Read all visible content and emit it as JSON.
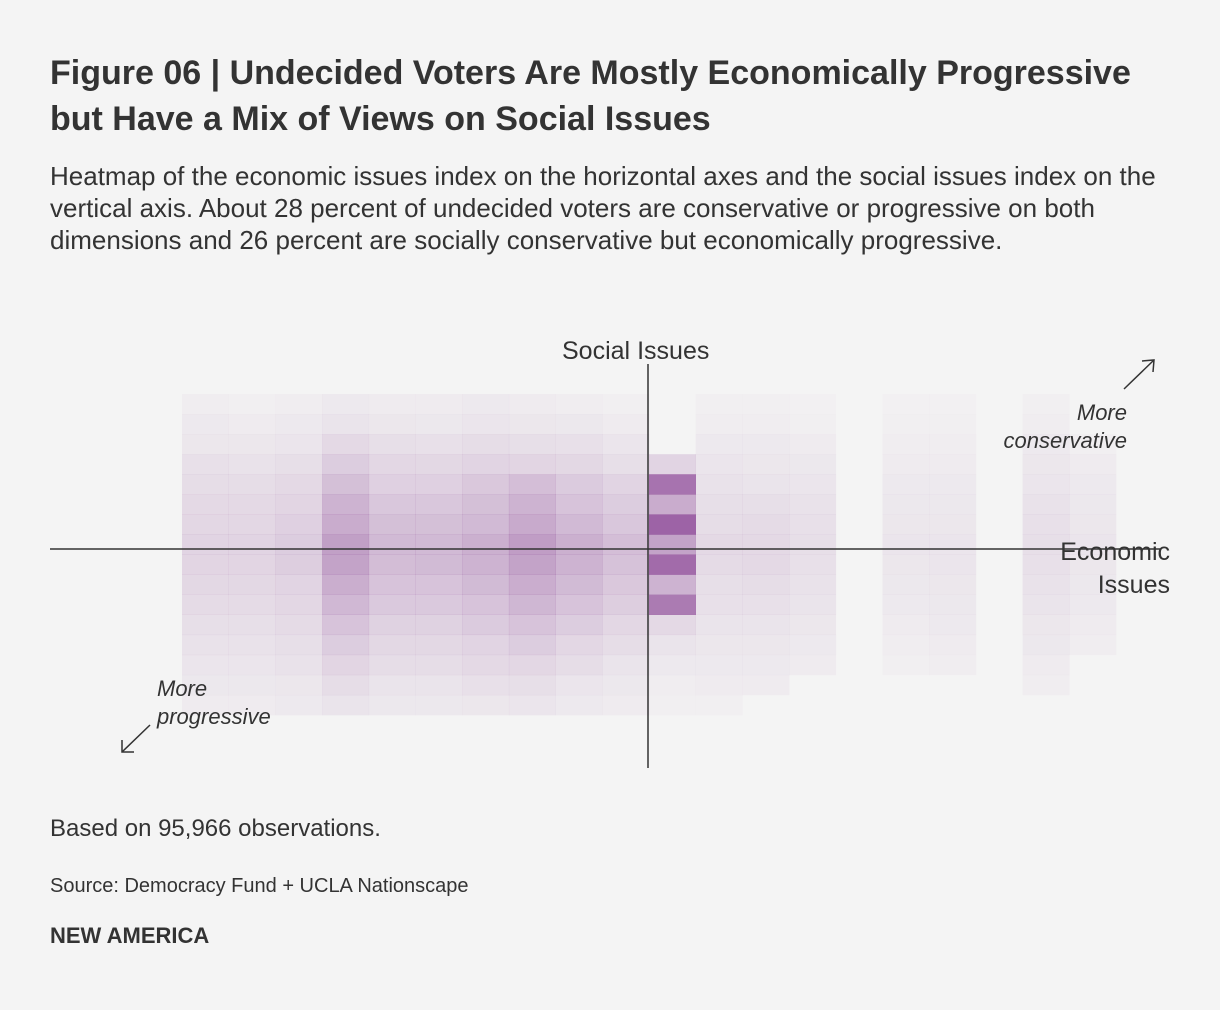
{
  "title": "Figure 06 | Undecided Voters Are Mostly Economically Progressive but Have a Mix of Views on Social Issues",
  "subtitle": "Heatmap of the economic issues index on the horizontal axes and the social issues index on the vertical axis. About 28 percent of undecided voters are conservative or progressive on both dimensions and 26 percent are socially conservative but economically progressive.",
  "note": "Based on 95,966 observations.",
  "source": "Source: Democracy Fund + UCLA Nationscape",
  "brand": "NEW AMERICA",
  "colors": {
    "accent": "#8e4a98",
    "axis": "#333333",
    "background": "#f4f4f4"
  },
  "chart_data": {
    "type": "heatmap",
    "x_label": "Economic Issues",
    "y_label": "Social Issues",
    "y_label_parts": [
      "Social",
      "Issues"
    ],
    "x_label_lines": [
      "Economic",
      "Issues"
    ],
    "annotation_top_right": [
      "More",
      "conservative"
    ],
    "annotation_bottom_left": [
      "More",
      "progressive"
    ],
    "x_range": [
      -1,
      1
    ],
    "y_range": [
      -1,
      1
    ],
    "x_bins": [
      "-0.94",
      "-0.84",
      "-0.74",
      "-0.64",
      "-0.54",
      "-0.44",
      "-0.34",
      "-0.24",
      "-0.14",
      "-0.04",
      "0.06",
      "0.16",
      "0.26",
      "0.36",
      "0.46",
      "0.56",
      "0.66",
      "0.76",
      "0.86",
      "0.96"
    ],
    "y_bins": [
      "0.79",
      "0.68",
      "0.58",
      "0.47",
      "0.37",
      "0.26",
      "0.16",
      "0.05",
      "-0.05",
      "-0.16",
      "-0.26",
      "-0.37",
      "-0.47",
      "-0.58",
      "-0.68",
      "-0.79"
    ],
    "intensity_scale": [
      0,
      1
    ],
    "values": [
      [
        0.04,
        0.03,
        0.04,
        0.06,
        0.05,
        0.05,
        0.06,
        0.05,
        0.04,
        0.03,
        0.0,
        0.03,
        0.03,
        0.02,
        0.0,
        0.02,
        0.02,
        0.0,
        0.03,
        0.0
      ],
      [
        0.06,
        0.05,
        0.06,
        0.1,
        0.08,
        0.07,
        0.09,
        0.08,
        0.07,
        0.05,
        0.0,
        0.04,
        0.04,
        0.03,
        0.0,
        0.03,
        0.03,
        0.0,
        0.04,
        0.0
      ],
      [
        0.08,
        0.08,
        0.09,
        0.16,
        0.13,
        0.12,
        0.14,
        0.13,
        0.12,
        0.09,
        0.0,
        0.06,
        0.06,
        0.05,
        0.0,
        0.04,
        0.04,
        0.0,
        0.06,
        0.03
      ],
      [
        0.12,
        0.11,
        0.13,
        0.24,
        0.18,
        0.17,
        0.2,
        0.19,
        0.17,
        0.13,
        0.2,
        0.09,
        0.08,
        0.07,
        0.0,
        0.05,
        0.05,
        0.0,
        0.08,
        0.05
      ],
      [
        0.14,
        0.14,
        0.16,
        0.32,
        0.22,
        0.22,
        0.27,
        0.33,
        0.25,
        0.2,
        0.8,
        0.11,
        0.1,
        0.09,
        0.0,
        0.06,
        0.06,
        0.0,
        0.09,
        0.06
      ],
      [
        0.16,
        0.16,
        0.19,
        0.4,
        0.28,
        0.28,
        0.32,
        0.4,
        0.3,
        0.24,
        0.45,
        0.13,
        0.13,
        0.11,
        0.0,
        0.07,
        0.07,
        0.0,
        0.11,
        0.07
      ],
      [
        0.18,
        0.18,
        0.22,
        0.45,
        0.32,
        0.32,
        0.36,
        0.46,
        0.36,
        0.28,
        0.9,
        0.14,
        0.15,
        0.12,
        0.0,
        0.08,
        0.08,
        0.0,
        0.12,
        0.08
      ],
      [
        0.2,
        0.2,
        0.24,
        0.52,
        0.36,
        0.36,
        0.42,
        0.54,
        0.42,
        0.33,
        0.5,
        0.16,
        0.16,
        0.13,
        0.0,
        0.09,
        0.09,
        0.0,
        0.13,
        0.09
      ],
      [
        0.19,
        0.19,
        0.23,
        0.5,
        0.34,
        0.35,
        0.4,
        0.5,
        0.4,
        0.31,
        0.85,
        0.15,
        0.16,
        0.12,
        0.0,
        0.08,
        0.09,
        0.0,
        0.12,
        0.08
      ],
      [
        0.17,
        0.17,
        0.2,
        0.43,
        0.3,
        0.3,
        0.35,
        0.44,
        0.35,
        0.27,
        0.4,
        0.13,
        0.14,
        0.11,
        0.0,
        0.07,
        0.08,
        0.0,
        0.11,
        0.07
      ],
      [
        0.15,
        0.15,
        0.18,
        0.37,
        0.26,
        0.26,
        0.3,
        0.38,
        0.3,
        0.23,
        0.75,
        0.12,
        0.12,
        0.1,
        0.0,
        0.06,
        0.07,
        0.0,
        0.1,
        0.06
      ],
      [
        0.13,
        0.13,
        0.15,
        0.3,
        0.21,
        0.21,
        0.25,
        0.3,
        0.24,
        0.18,
        0.16,
        0.1,
        0.1,
        0.08,
        0.0,
        0.05,
        0.06,
        0.0,
        0.08,
        0.05
      ],
      [
        0.11,
        0.11,
        0.13,
        0.24,
        0.17,
        0.17,
        0.2,
        0.24,
        0.18,
        0.14,
        0.1,
        0.08,
        0.08,
        0.06,
        0.0,
        0.04,
        0.05,
        0.0,
        0.07,
        0.04
      ],
      [
        0.09,
        0.09,
        0.11,
        0.19,
        0.14,
        0.14,
        0.16,
        0.18,
        0.14,
        0.1,
        0.06,
        0.06,
        0.06,
        0.05,
        0.0,
        0.03,
        0.04,
        0.0,
        0.05,
        0.0
      ],
      [
        0.07,
        0.07,
        0.08,
        0.14,
        0.1,
        0.1,
        0.12,
        0.13,
        0.09,
        0.07,
        0.04,
        0.05,
        0.05,
        0.0,
        0.0,
        0.0,
        0.0,
        0.0,
        0.04,
        0.0
      ],
      [
        0.05,
        0.05,
        0.06,
        0.1,
        0.07,
        0.07,
        0.08,
        0.09,
        0.06,
        0.05,
        0.03,
        0.03,
        0.0,
        0.0,
        0.0,
        0.0,
        0.0,
        0.0,
        0.0,
        0.0
      ]
    ]
  }
}
